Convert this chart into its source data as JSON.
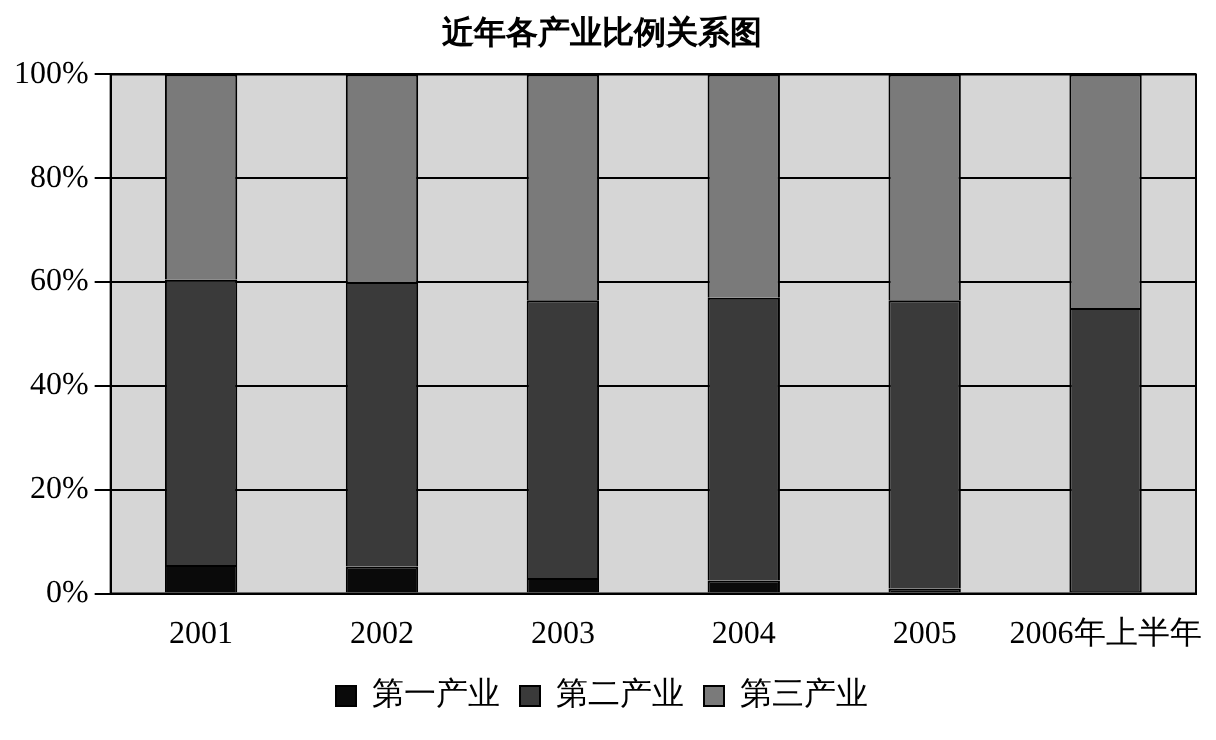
{
  "chart_data": {
    "type": "bar",
    "title": "近年各产业比例关系图",
    "stacked": true,
    "categories": [
      "2001",
      "2002",
      "2003",
      "2004",
      "2005",
      "2006年上半年"
    ],
    "series": [
      {
        "name": "第一产业",
        "color": "#0a0a0a",
        "values": [
          5.5,
          5.2,
          3,
          2.5,
          1,
          0.5
        ]
      },
      {
        "name": "第二产业",
        "color": "#3a3a3a",
        "values": [
          55,
          54.8,
          53.5,
          54.5,
          55.5,
          54.5
        ]
      },
      {
        "name": "第三产业",
        "color": "#7a7a7a",
        "values": [
          39.5,
          40,
          43.5,
          43,
          43.5,
          45
        ]
      }
    ],
    "ylim": [
      0,
      100
    ],
    "yticks": [
      {
        "value": 0,
        "label": "0%"
      },
      {
        "value": 20,
        "label": "20%"
      },
      {
        "value": 40,
        "label": "40%"
      },
      {
        "value": 60,
        "label": "60%"
      },
      {
        "value": 80,
        "label": "80%"
      },
      {
        "value": 100,
        "label": "100%"
      }
    ],
    "grid": "y",
    "legend": "bottom"
  }
}
